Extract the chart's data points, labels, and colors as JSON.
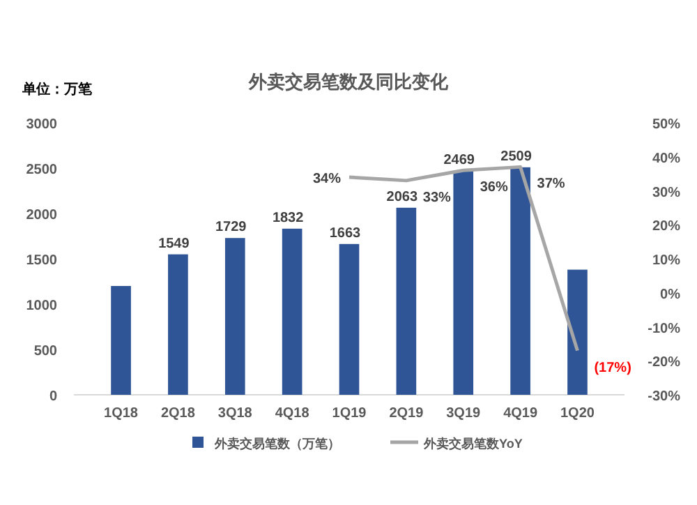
{
  "chart_data": {
    "type": "bar",
    "title": "外卖交易笔数及同比变化",
    "annotations": [
      "单位：万笔"
    ],
    "categories": [
      "1Q18",
      "2Q18",
      "3Q18",
      "4Q18",
      "1Q19",
      "2Q19",
      "3Q19",
      "4Q19",
      "1Q20"
    ],
    "series": [
      {
        "name": "外卖交易笔数（万笔）",
        "color": "#2f5597",
        "values": [
          1200,
          1549,
          1729,
          1832,
          1663,
          2063,
          2469,
          2509,
          1380
        ],
        "value_labels": [
          null,
          "1549",
          "1729",
          "1832",
          "1663",
          "2063",
          "2469",
          "2509",
          null
        ]
      },
      {
        "name": "外卖交易笔数YoY",
        "type": "line",
        "axis": "y2",
        "color": "#a6a6a6",
        "values": [
          null,
          null,
          null,
          null,
          34,
          33,
          36,
          37,
          -17
        ],
        "value_labels": [
          null,
          null,
          null,
          null,
          "34%",
          "33%",
          "36%",
          "37%",
          "(17%)"
        ]
      }
    ],
    "ylim": [
      0,
      3000
    ],
    "yticks": [
      0,
      500,
      1000,
      1500,
      2000,
      2500,
      3000
    ],
    "y2lim": [
      -30,
      50
    ],
    "y2ticks": [
      {
        "value": -30,
        "label": "-30%"
      },
      {
        "value": -20,
        "label": "-20%"
      },
      {
        "value": -10,
        "label": "-10%"
      },
      {
        "value": 0,
        "label": "0%"
      },
      {
        "value": 10,
        "label": "10%"
      },
      {
        "value": 20,
        "label": "20%"
      },
      {
        "value": 30,
        "label": "30%"
      },
      {
        "value": 40,
        "label": "40%"
      },
      {
        "value": 50,
        "label": "50%"
      }
    ],
    "legend": "bottom",
    "marker": "none"
  }
}
